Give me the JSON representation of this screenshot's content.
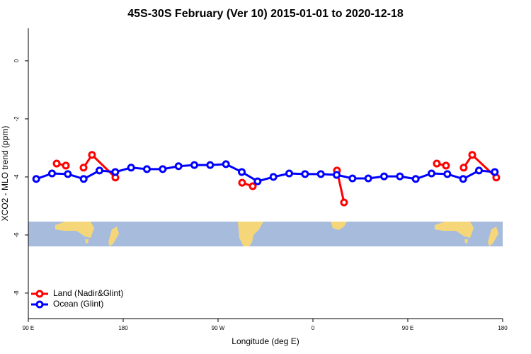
{
  "chart_data": {
    "type": "line",
    "title": "45S-30S February (Ver 10)   2015-01-01 to 2020-12-18",
    "x_label": "Longitude (deg E)",
    "y_label": "XCO2 - MLO trend (ppm)",
    "xlim": [
      90,
      540
    ],
    "ylim": [
      -8.88,
      1.12
    ],
    "xticks": [
      {
        "value": 90,
        "label": "90 E"
      },
      {
        "value": 180,
        "label": "180"
      },
      {
        "value": 270,
        "label": "90 W"
      },
      {
        "value": 360,
        "label": "0"
      },
      {
        "value": 450,
        "label": "90 E"
      },
      {
        "value": 540,
        "label": "180"
      }
    ],
    "yticks": [
      0,
      -2,
      -4,
      -6,
      -8
    ],
    "legend": "bottomleft",
    "series": [
      {
        "name": "Land (Nadir&Glint)",
        "color": "#ff0000",
        "x": [
          116.9,
          125.6,
          null,
          142.4,
          150.4,
          172.6,
          null,
          292.8,
          302.9,
          null,
          382.8,
          389.5,
          null,
          477.5,
          486.2,
          null,
          503,
          511.1,
          533.9
        ],
        "values": [
          -3.54,
          -3.61,
          null,
          -3.68,
          -3.24,
          -4.02,
          null,
          -4.2,
          -4.32,
          null,
          -3.78,
          -4.88,
          null,
          -3.54,
          -3.61,
          null,
          -3.68,
          -3.24,
          -4.02
        ]
      },
      {
        "name": "Ocean (Glint)",
        "color": "#0000ff",
        "x": [
          97.5,
          112.5,
          127.5,
          142.5,
          157.5,
          172.5,
          187.5,
          202.5,
          217.5,
          232.5,
          247.5,
          262.5,
          277.5,
          292.5,
          307.5,
          322.5,
          337.5,
          352.5,
          367.5,
          382.5,
          397.5,
          412.5,
          427.5,
          442.5,
          457.5,
          472.5,
          487.5,
          502.5,
          517.5,
          532.5
        ],
        "values": [
          -4.07,
          -3.88,
          -3.9,
          -4.07,
          -3.78,
          -3.83,
          -3.68,
          -3.73,
          -3.73,
          -3.63,
          -3.59,
          -3.59,
          -3.56,
          -3.83,
          -4.15,
          -4.0,
          -3.88,
          -3.9,
          -3.9,
          -3.93,
          -4.05,
          -4.05,
          -3.98,
          -3.98,
          -4.07,
          -3.88,
          -3.9,
          -4.07,
          -3.78,
          -3.83
        ]
      }
    ]
  }
}
